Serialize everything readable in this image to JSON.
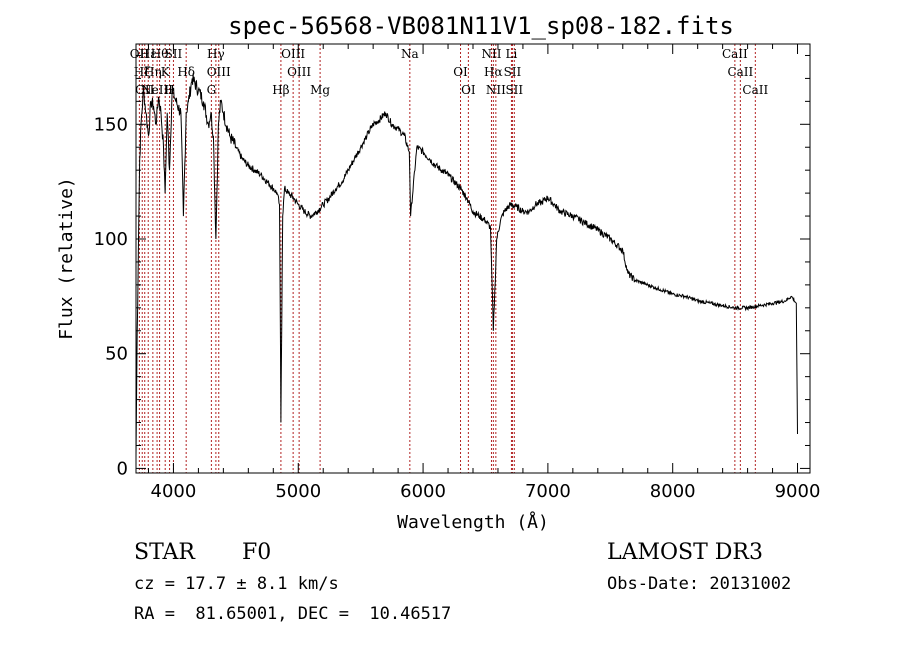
{
  "chart_data": {
    "type": "line",
    "title": "spec-56568-VB081N11V1_sp08-182.fits",
    "xlabel": "Wavelength (Å)",
    "ylabel": "Flux (relative)",
    "xlim": [
      3700,
      9100
    ],
    "ylim": [
      -2,
      185
    ],
    "x_ticks": [
      4000,
      5000,
      6000,
      7000,
      8000,
      9000
    ],
    "y_ticks": [
      0,
      50,
      100,
      150
    ],
    "grid": false,
    "series": [
      {
        "name": "spectrum",
        "x": [
          3700,
          3710,
          3720,
          3730,
          3740,
          3760,
          3780,
          3800,
          3820,
          3840,
          3860,
          3880,
          3900,
          3920,
          3933,
          3950,
          3968,
          3990,
          4020,
          4060,
          4080,
          4102,
          4120,
          4150,
          4200,
          4240,
          4280,
          4300,
          4320,
          4340,
          4360,
          4380,
          4400,
          4450,
          4500,
          4550,
          4600,
          4650,
          4700,
          4750,
          4800,
          4830,
          4850,
          4861,
          4875,
          4890,
          4920,
          4960,
          5000,
          5050,
          5100,
          5150,
          5200,
          5250,
          5300,
          5350,
          5400,
          5450,
          5500,
          5550,
          5600,
          5650,
          5700,
          5750,
          5800,
          5850,
          5890,
          5900,
          5950,
          6000,
          6050,
          6100,
          6150,
          6200,
          6250,
          6300,
          6350,
          6400,
          6450,
          6500,
          6540,
          6563,
          6590,
          6620,
          6650,
          6700,
          6750,
          6800,
          6850,
          6900,
          6950,
          7000,
          7050,
          7100,
          7200,
          7300,
          7400,
          7500,
          7600,
          7640,
          7700,
          7800,
          7900,
          8000,
          8100,
          8200,
          8300,
          8400,
          8500,
          8600,
          8700,
          8800,
          8900,
          8950,
          8990,
          9000
        ],
        "y": [
          5,
          60,
          100,
          135,
          150,
          165,
          155,
          145,
          160,
          158,
          150,
          162,
          155,
          140,
          120,
          155,
          130,
          165,
          160,
          155,
          110,
          155,
          160,
          170,
          165,
          160,
          150,
          155,
          145,
          100,
          150,
          160,
          155,
          145,
          140,
          135,
          132,
          130,
          128,
          125,
          122,
          120,
          115,
          20,
          110,
          122,
          120,
          118,
          115,
          112,
          110,
          112,
          115,
          118,
          122,
          125,
          130,
          135,
          140,
          145,
          150,
          152,
          155,
          150,
          148,
          145,
          138,
          110,
          140,
          138,
          135,
          132,
          130,
          128,
          125,
          122,
          118,
          112,
          110,
          108,
          105,
          60,
          100,
          108,
          112,
          115,
          114,
          112,
          112,
          115,
          116,
          118,
          115,
          112,
          110,
          107,
          104,
          100,
          95,
          85,
          82,
          80,
          78,
          76,
          75,
          73,
          72,
          71,
          70,
          70,
          71,
          72,
          73,
          75,
          72,
          15
        ]
      }
    ],
    "lines": [
      {
        "x": 3727,
        "label": "OII"
      },
      {
        "x": 3750,
        "label": "Hζ"
      },
      {
        "x": 3770,
        "label": "OII"
      },
      {
        "x": 3798,
        "label": "Hε"
      },
      {
        "x": 3835,
        "label": "Hη"
      },
      {
        "x": 3869,
        "label": "NeIII"
      },
      {
        "x": 3889,
        "label": "Hθ"
      },
      {
        "x": 3934,
        "label": "K"
      },
      {
        "x": 3969,
        "label": "H"
      },
      {
        "x": 4000,
        "label": "SII"
      },
      {
        "x": 4102,
        "label": "Hδ"
      },
      {
        "x": 4304,
        "label": "G"
      },
      {
        "x": 4340,
        "label": "Hγ"
      },
      {
        "x": 4363,
        "label": "OIII"
      },
      {
        "x": 4861,
        "label": "Hβ"
      },
      {
        "x": 4959,
        "label": "OIII"
      },
      {
        "x": 5007,
        "label": "OIII"
      },
      {
        "x": 5175,
        "label": "Mg"
      },
      {
        "x": 5894,
        "label": "Na"
      },
      {
        "x": 6300,
        "label": "OI"
      },
      {
        "x": 6363,
        "label": "OI"
      },
      {
        "x": 6548,
        "label": "NII"
      },
      {
        "x": 6563,
        "label": "Hα"
      },
      {
        "x": 6583,
        "label": "NII"
      },
      {
        "x": 6708,
        "label": "Li"
      },
      {
        "x": 6716,
        "label": "SII"
      },
      {
        "x": 6731,
        "label": "SII"
      },
      {
        "x": 8498,
        "label": "CaII"
      },
      {
        "x": 8542,
        "label": "CaII"
      },
      {
        "x": 8662,
        "label": "CaII"
      }
    ]
  },
  "info": {
    "object_class": "STAR",
    "subclass": "F0",
    "survey": "LAMOST DR3",
    "redshift": "cz = 17.7 ± 8.1 km/s",
    "obs_date": "Obs-Date: 20131002",
    "coords": "RA =  81.65001, DEC =  10.46517"
  }
}
